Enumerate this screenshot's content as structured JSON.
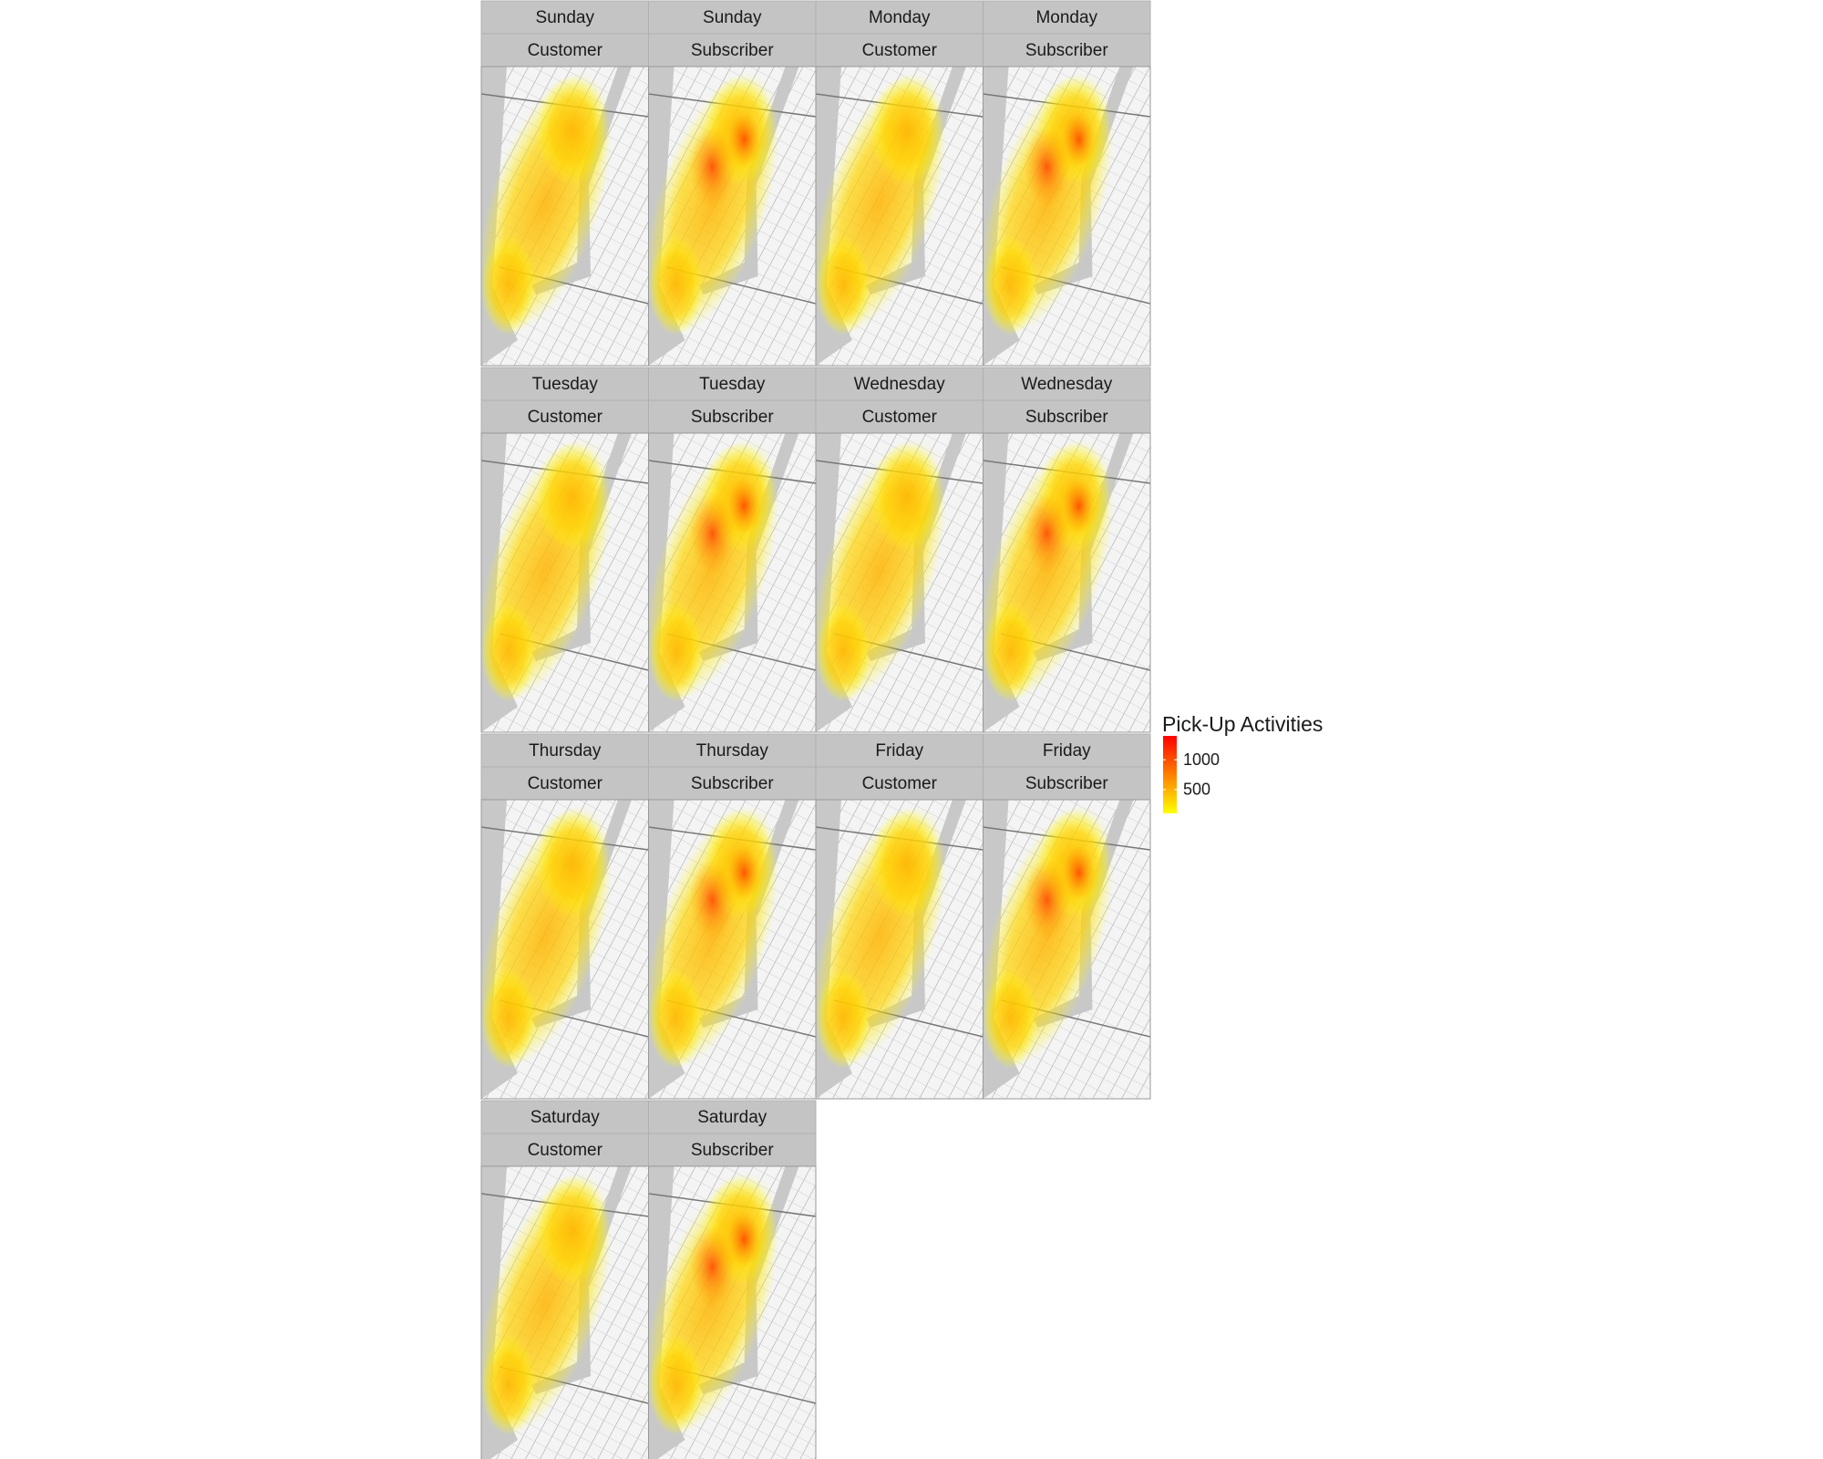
{
  "panels": [
    {
      "day": "Sunday",
      "type": "Customer"
    },
    {
      "day": "Sunday",
      "type": "Subscriber"
    },
    {
      "day": "Monday",
      "type": "Customer"
    },
    {
      "day": "Monday",
      "type": "Subscriber"
    },
    {
      "day": "Tuesday",
      "type": "Customer"
    },
    {
      "day": "Tuesday",
      "type": "Subscriber"
    },
    {
      "day": "Wednesday",
      "type": "Customer"
    },
    {
      "day": "Wednesday",
      "type": "Subscriber"
    },
    {
      "day": "Thursday",
      "type": "Customer"
    },
    {
      "day": "Thursday",
      "type": "Subscriber"
    },
    {
      "day": "Friday",
      "type": "Customer"
    },
    {
      "day": "Friday",
      "type": "Subscriber"
    },
    {
      "day": "Saturday",
      "type": "Customer"
    },
    {
      "day": "Saturday",
      "type": "Subscriber"
    }
  ],
  "legend": {
    "title": "Pick-Up Activities",
    "ticks": [
      500,
      1000
    ],
    "range": [
      100,
      1400
    ],
    "colors": [
      "#ffff00",
      "#ff0000"
    ]
  }
}
